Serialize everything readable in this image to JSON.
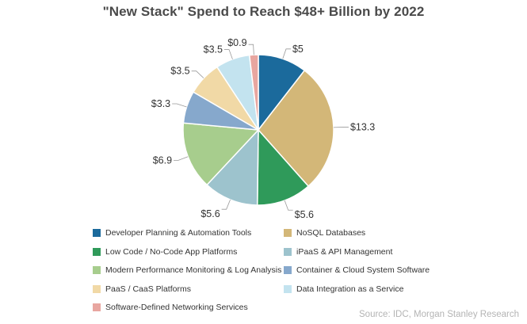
{
  "chart_data": {
    "type": "pie",
    "title": "\"New Stack\" Spend to Reach $48+ Billion by 2022",
    "unit_prefix": "$",
    "slices": [
      {
        "name": "Developer Planning & Automation Tools",
        "value": 5,
        "label": "$5",
        "color": "#1b6a9c"
      },
      {
        "name": "NoSQL Databases",
        "value": 13.3,
        "label": "$13.3",
        "color": "#d3b778"
      },
      {
        "name": "Low Code / No-Code App Platforms",
        "value": 5.6,
        "label": "$5.6",
        "color": "#2f9a5a"
      },
      {
        "name": "iPaaS & API Management",
        "value": 5.6,
        "label": "$5.6",
        "color": "#9dc3cd"
      },
      {
        "name": "Modern Performance Monitoring & Log Analysis",
        "value": 6.9,
        "label": "$6.9",
        "color": "#a7cd8d"
      },
      {
        "name": "Container & Cloud System Software",
        "value": 3.3,
        "label": "$3.3",
        "color": "#86a8cc"
      },
      {
        "name": "PaaS / CaaS Platforms",
        "value": 3.5,
        "label": "$3.5",
        "color": "#f1d9a6"
      },
      {
        "name": "Data Integration as a Service",
        "value": 3.5,
        "label": "$3.5",
        "color": "#c3e3ef"
      },
      {
        "name": "Software-Defined Networking Services",
        "value": 0.9,
        "label": "$0.9",
        "color": "#e8a6a0"
      }
    ],
    "legend_position": "bottom",
    "source": "Source: IDC, Morgan Stanley Research"
  }
}
